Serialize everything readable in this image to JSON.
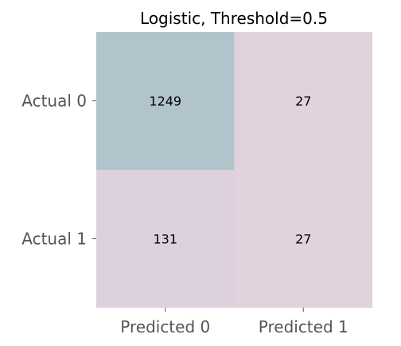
{
  "chart_data": {
    "type": "heatmap",
    "title": "Logistic, Threshold=0.5",
    "xlabel": "",
    "ylabel": "",
    "row_labels": [
      "Actual 0",
      "Actual 1"
    ],
    "col_labels": [
      "Predicted 0",
      "Predicted 1"
    ],
    "values": [
      [
        1249,
        27
      ],
      [
        131,
        27
      ]
    ],
    "colorbar": false,
    "grid": false,
    "colors": {
      "low": "#e1d3de",
      "high": "#b2c4cb"
    }
  }
}
